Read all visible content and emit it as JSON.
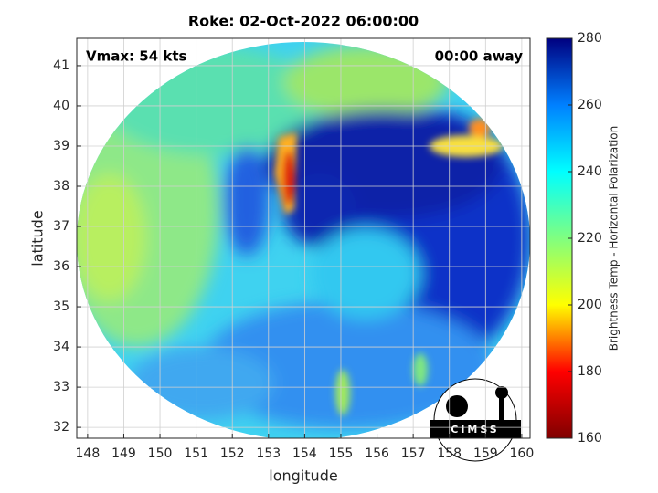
{
  "chart_data": {
    "type": "map",
    "title": "Roke: 02-Oct-2022 06:00:00",
    "annotations": [
      "Vmax: 54 kts",
      "00:00 away"
    ],
    "logo": "CIMSS",
    "xlabel": "longitude",
    "ylabel": "latitude",
    "xlim": [
      147.7,
      160.23
    ],
    "xticks": [
      148,
      149,
      150,
      151,
      152,
      153,
      154,
      155,
      156,
      157,
      158,
      159,
      160
    ],
    "ylim": [
      31.73,
      41.68
    ],
    "yticks": [
      32,
      33,
      34,
      35,
      36,
      37,
      38,
      39,
      40,
      41
    ],
    "grid": true,
    "colorbar": {
      "label": "Brightness Temp - Horizontal Polarization",
      "lim": [
        160,
        280
      ],
      "ticks": [
        160,
        180,
        200,
        220,
        240,
        260,
        280
      ],
      "colors": [
        "#800000",
        "#ff0000",
        "#ffff00",
        "#80ff80",
        "#00ffff",
        "#0080ff",
        "#000080"
      ]
    }
  }
}
